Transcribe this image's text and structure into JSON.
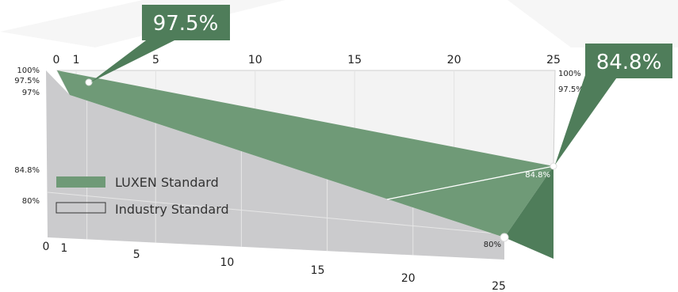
{
  "chart_data": {
    "type": "area",
    "x": [
      0,
      1,
      25
    ],
    "xticks": [
      0,
      1,
      5,
      10,
      15,
      20,
      25
    ],
    "yticks_left": [
      "100%",
      "97.5%",
      "97%",
      "84.8%",
      "80%"
    ],
    "yticks_right": [
      "100%",
      "97.5%"
    ],
    "series": [
      {
        "name": "LUXEN Standard",
        "color": "#5d8c67",
        "start_value": 100,
        "end_value": 84.8,
        "point_label": "84.8%",
        "callouts": [
          {
            "label": "97.5%",
            "x": 1,
            "y": 97.5
          },
          {
            "label": "84.8%",
            "x": 25,
            "y": 84.8
          }
        ]
      },
      {
        "name": "Industry Standard",
        "color": "#cbcbcd",
        "start_value": 97,
        "end_value": 80,
        "point_label": "80%"
      }
    ]
  }
}
